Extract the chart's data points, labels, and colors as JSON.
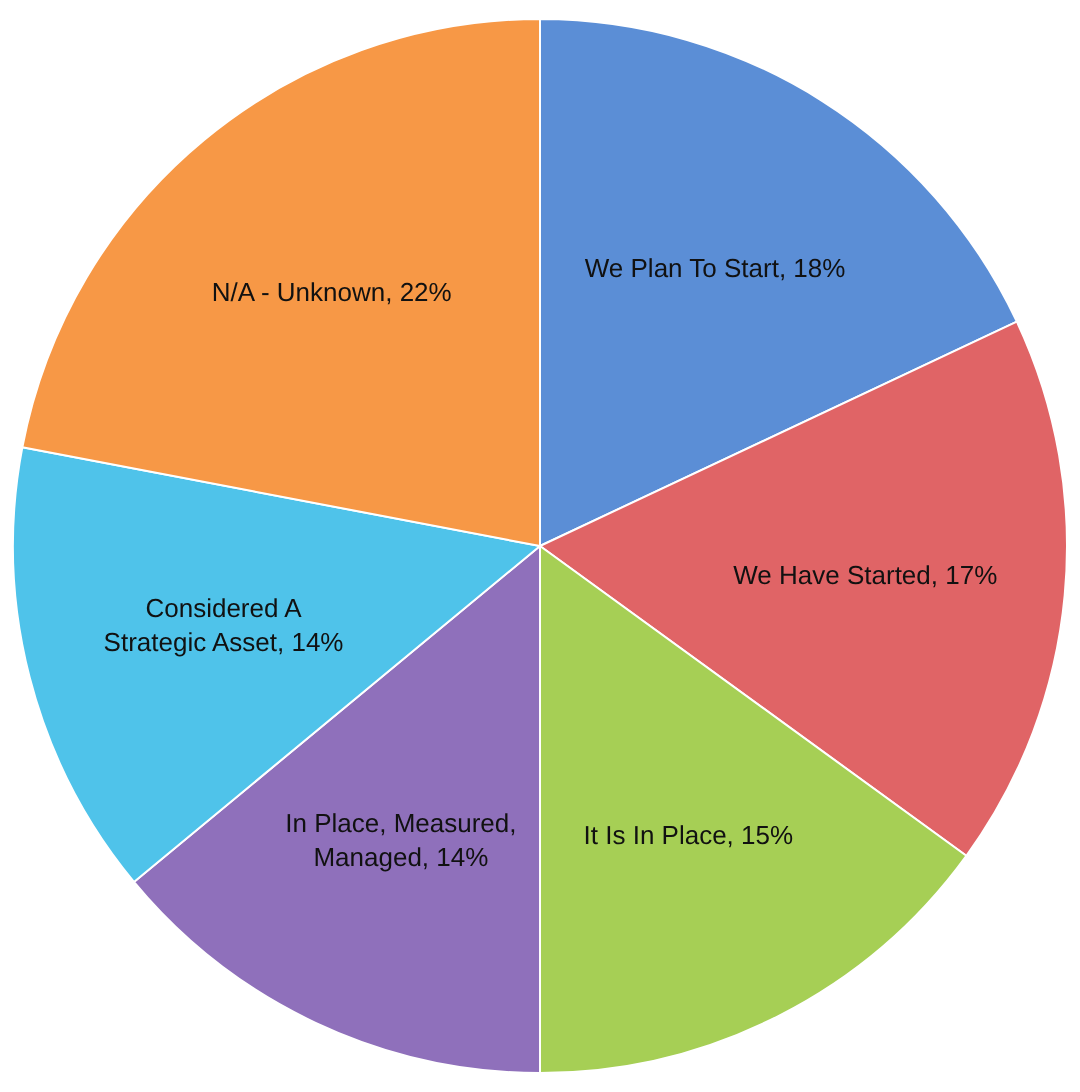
{
  "chart_data": {
    "type": "pie",
    "categories": [
      "We Plan To Start",
      "We Have Started",
      "It Is In Place",
      "In Place, Measured, Managed",
      "Considered A Strategic Asset",
      "N/A - Unknown"
    ],
    "values": [
      18,
      17,
      15,
      14,
      14,
      22
    ],
    "value_labels": [
      "18%",
      "17%",
      "15%",
      "14%",
      "14%",
      "22%"
    ],
    "colors": [
      "#5b8ed6",
      "#e06466",
      "#a6cf55",
      "#8f70bb",
      "#4fc3ea",
      "#f79846"
    ],
    "legend": false
  }
}
